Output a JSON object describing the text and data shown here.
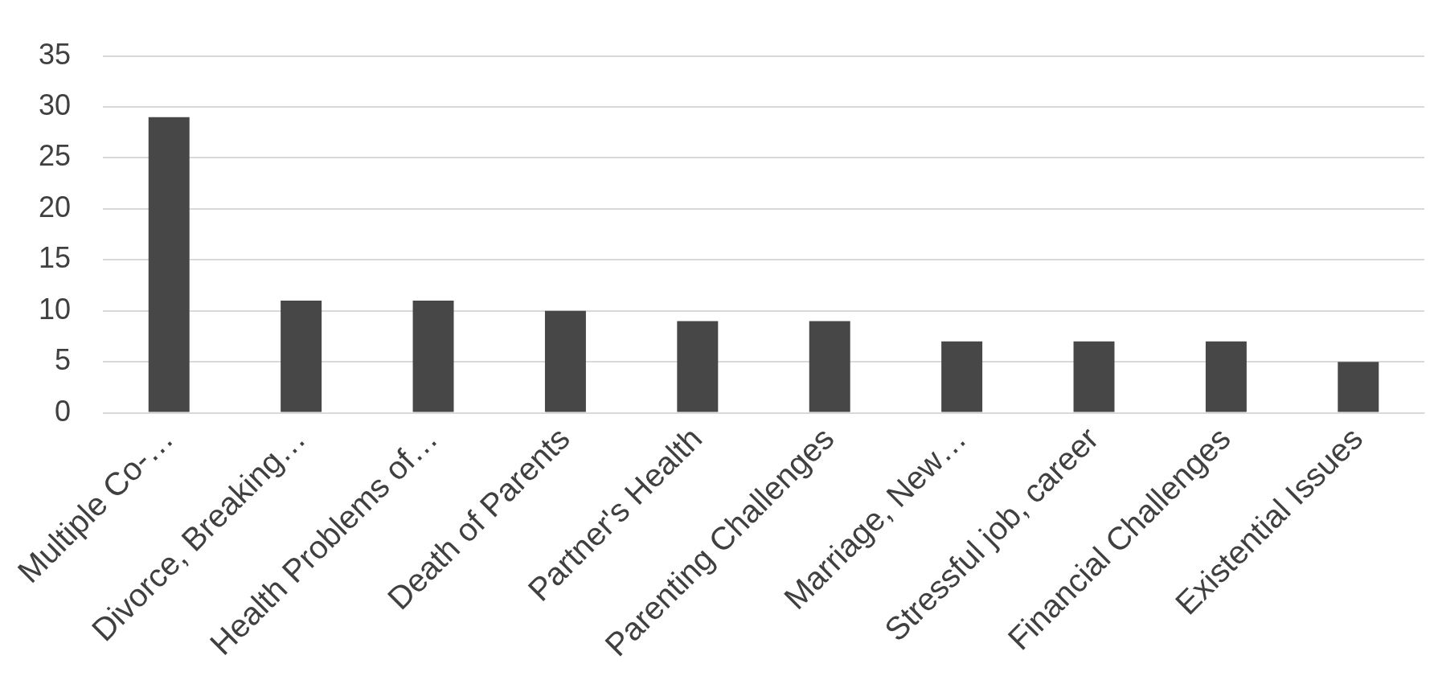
{
  "chart_data": {
    "type": "bar",
    "categories": [
      "Multiple Co-…",
      "Divorce, Breaking…",
      "Health Problems of…",
      "Death of Parents",
      "Partner's Health",
      "Parenting Challenges",
      "Marriage, New…",
      "Stressful job, career",
      "Financial Challenges",
      "Existential Issues"
    ],
    "values": [
      29,
      11,
      11,
      10,
      9,
      9,
      7,
      7,
      7,
      5
    ],
    "color": "#474747",
    "ylim": [
      0,
      35
    ],
    "yticks": [
      0,
      5,
      10,
      15,
      20,
      25,
      30,
      35
    ],
    "grid": "y",
    "legend": false
  }
}
